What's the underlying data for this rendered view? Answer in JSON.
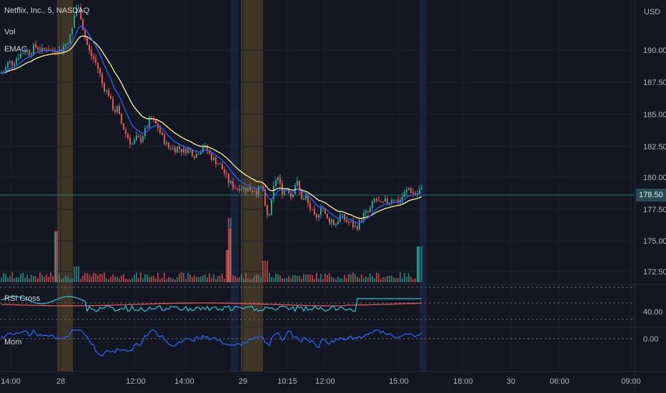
{
  "header": {
    "symbol": "Netflix, Inc., 5, NASDAQ",
    "indicator_vol": "Vol",
    "indicator_emac": "EMAC"
  },
  "panes": {
    "rsi_label": "RSI Cross",
    "mom_label": "Mom"
  },
  "currency": "USD",
  "last_price": "178.50",
  "colors": {
    "background": "#131722",
    "grid": "#1e222d",
    "up": "#26a69a",
    "down": "#ef5350",
    "ema_fast": "#2962ff",
    "ema_slow": "#fff59d",
    "rsi_fast": "#26c6da",
    "rsi_slow": "#ef5350",
    "momentum": "#2962ff",
    "session_orange": "#5d4a2a",
    "session_blue": "#1c2a4a"
  },
  "chart_data": {
    "type": "candlestick",
    "title": "Netflix, Inc., 5, NASDAQ",
    "price_axis": {
      "ylim": [
        171.2,
        193.4
      ],
      "ticks": [
        "190.00",
        "187.50",
        "185.00",
        "182.50",
        "180.00",
        "177.50",
        "175.00",
        "172.50"
      ]
    },
    "rsi_axis": {
      "ticks": [
        "40.00"
      ]
    },
    "mom_axis": {
      "ticks": [
        "0.00"
      ]
    },
    "time_axis": {
      "ticks": [
        "14:00",
        "28",
        "12:00",
        "14:00",
        "29",
        "10:15",
        "12:00",
        "15:00",
        "18:00",
        "30",
        "06:00",
        "09:00"
      ]
    },
    "close_path": [
      [
        0,
        187.6
      ],
      [
        6,
        187.8
      ],
      [
        12,
        188.6
      ],
      [
        18,
        188.4
      ],
      [
        24,
        188.9
      ],
      [
        30,
        189.2
      ],
      [
        36,
        189.5
      ],
      [
        42,
        189.2
      ],
      [
        48,
        189.8
      ],
      [
        54,
        189.6
      ],
      [
        60,
        189.4
      ],
      [
        66,
        189.7
      ],
      [
        72,
        189.3
      ],
      [
        78,
        189.6
      ],
      [
        84,
        189.4
      ],
      [
        90,
        189.8
      ],
      [
        96,
        190.3
      ],
      [
        100,
        190.8
      ],
      [
        104,
        192.2
      ],
      [
        108,
        193.0
      ],
      [
        112,
        192.4
      ],
      [
        116,
        191.2
      ],
      [
        120,
        190.2
      ],
      [
        124,
        189.5
      ],
      [
        128,
        189.0
      ],
      [
        132,
        188.7
      ],
      [
        136,
        188.2
      ],
      [
        140,
        187.5
      ],
      [
        144,
        186.6
      ],
      [
        148,
        186.3
      ],
      [
        152,
        186.0
      ],
      [
        156,
        185.2
      ],
      [
        160,
        184.6
      ],
      [
        164,
        184.9
      ],
      [
        168,
        184.0
      ],
      [
        172,
        183.4
      ],
      [
        176,
        182.9
      ],
      [
        180,
        182.5
      ],
      [
        184,
        182.0
      ],
      [
        188,
        182.3
      ],
      [
        192,
        182.6
      ],
      [
        196,
        182.3
      ],
      [
        200,
        182.8
      ],
      [
        204,
        183.2
      ],
      [
        208,
        183.8
      ],
      [
        212,
        184.0
      ],
      [
        216,
        183.7
      ],
      [
        220,
        183.5
      ],
      [
        224,
        183.0
      ],
      [
        228,
        182.5
      ],
      [
        232,
        182.1
      ],
      [
        236,
        181.8
      ],
      [
        240,
        181.9
      ],
      [
        244,
        181.6
      ],
      [
        248,
        181.8
      ],
      [
        252,
        181.7
      ],
      [
        256,
        181.5
      ],
      [
        260,
        181.6
      ],
      [
        264,
        181.7
      ],
      [
        268,
        181.4
      ],
      [
        272,
        181.2
      ],
      [
        276,
        181.3
      ],
      [
        280,
        181.6
      ],
      [
        284,
        181.9
      ],
      [
        288,
        181.7
      ],
      [
        292,
        181.4
      ],
      [
        296,
        181.0
      ],
      [
        300,
        180.8
      ],
      [
        304,
        180.6
      ],
      [
        308,
        180.4
      ],
      [
        312,
        180.0
      ],
      [
        316,
        179.6
      ],
      [
        320,
        179.1
      ],
      [
        324,
        178.9
      ],
      [
        328,
        178.7
      ],
      [
        332,
        178.6
      ],
      [
        336,
        178.7
      ],
      [
        340,
        178.6
      ],
      [
        344,
        178.5
      ],
      [
        348,
        178.6
      ],
      [
        352,
        178.4
      ],
      [
        356,
        178.5
      ],
      [
        360,
        178.3
      ],
      [
        364,
        178.7
      ],
      [
        368,
        178.5
      ],
      [
        372,
        176.5
      ],
      [
        376,
        176.3
      ],
      [
        380,
        177.5
      ],
      [
        384,
        179.0
      ],
      [
        388,
        179.6
      ],
      [
        392,
        178.8
      ],
      [
        396,
        178.2
      ],
      [
        400,
        178.7
      ],
      [
        404,
        178.4
      ],
      [
        408,
        177.8
      ],
      [
        412,
        178.9
      ],
      [
        416,
        179.0
      ],
      [
        420,
        178.1
      ],
      [
        424,
        177.6
      ],
      [
        428,
        177.9
      ],
      [
        432,
        177.2
      ],
      [
        436,
        176.8
      ],
      [
        440,
        176.3
      ],
      [
        444,
        176.1
      ],
      [
        448,
        177.3
      ],
      [
        452,
        177.0
      ],
      [
        456,
        176.3
      ],
      [
        460,
        176.0
      ],
      [
        464,
        176.1
      ],
      [
        468,
        175.7
      ],
      [
        472,
        176.0
      ],
      [
        476,
        176.4
      ],
      [
        480,
        176.3
      ],
      [
        484,
        176.0
      ],
      [
        488,
        175.9
      ],
      [
        492,
        175.8
      ],
      [
        496,
        175.5
      ],
      [
        500,
        175.6
      ],
      [
        504,
        176.0
      ],
      [
        508,
        176.5
      ],
      [
        512,
        176.6
      ],
      [
        516,
        176.7
      ],
      [
        520,
        177.2
      ],
      [
        524,
        177.7
      ],
      [
        528,
        177.6
      ],
      [
        532,
        177.3
      ],
      [
        536,
        177.4
      ],
      [
        540,
        177.6
      ],
      [
        544,
        177.5
      ],
      [
        548,
        177.8
      ],
      [
        552,
        177.7
      ],
      [
        556,
        177.5
      ],
      [
        560,
        177.7
      ],
      [
        564,
        178.0
      ],
      [
        568,
        178.3
      ],
      [
        572,
        178.6
      ],
      [
        576,
        178.3
      ],
      [
        580,
        178.1
      ],
      [
        584,
        178.2
      ],
      [
        588,
        178.5
      ],
      [
        592,
        178.5
      ]
    ]
  }
}
